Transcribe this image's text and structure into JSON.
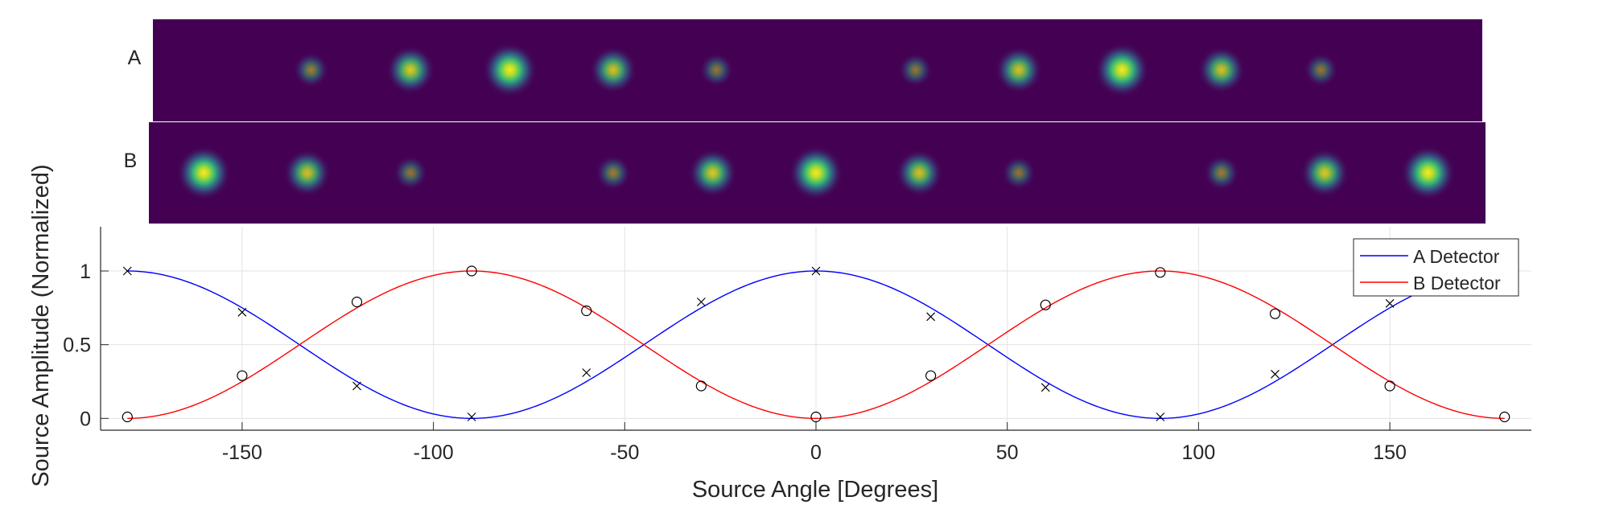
{
  "chart_data": [
    {
      "type": "heatmap",
      "row_label": "A",
      "spots": [
        {
          "angle": -132,
          "intensity": 0.35
        },
        {
          "angle": -106,
          "intensity": 0.8
        },
        {
          "angle": -80,
          "intensity": 1.0
        },
        {
          "angle": -53,
          "intensity": 0.75
        },
        {
          "angle": -26,
          "intensity": 0.3
        },
        {
          "angle": 26,
          "intensity": 0.3
        },
        {
          "angle": 53,
          "intensity": 0.75
        },
        {
          "angle": 80,
          "intensity": 1.0
        },
        {
          "angle": 106,
          "intensity": 0.75
        },
        {
          "angle": 132,
          "intensity": 0.3
        }
      ]
    },
    {
      "type": "heatmap",
      "row_label": "B",
      "spots": [
        {
          "angle": -160,
          "intensity": 1.0
        },
        {
          "angle": -133,
          "intensity": 0.75
        },
        {
          "angle": -106,
          "intensity": 0.3
        },
        {
          "angle": -53,
          "intensity": 0.35
        },
        {
          "angle": -27,
          "intensity": 0.8
        },
        {
          "angle": 0,
          "intensity": 1.0
        },
        {
          "angle": 27,
          "intensity": 0.75
        },
        {
          "angle": 53,
          "intensity": 0.3
        },
        {
          "angle": 106,
          "intensity": 0.35
        },
        {
          "angle": 133,
          "intensity": 0.8
        },
        {
          "angle": 160,
          "intensity": 1.0
        }
      ]
    },
    {
      "type": "line",
      "xlabel": "Source Angle [Degrees]",
      "ylabel": "Source Amplitude (Normalized)",
      "xlim": [
        -187,
        187
      ],
      "ylim": [
        -0.08,
        1.3
      ],
      "xticks": [
        -150,
        -100,
        -50,
        0,
        50,
        100,
        150
      ],
      "yticks": [
        0,
        0.5,
        1
      ],
      "ytick_labels": [
        "0",
        "0.5",
        "1"
      ],
      "grid": true,
      "legend_position": "top-right",
      "series": [
        {
          "name": "A Detector",
          "color": "#0000ff",
          "function": "cos2"
        },
        {
          "name": "B Detector",
          "color": "#ff0000",
          "function": "sin2"
        }
      ],
      "markers": [
        {
          "series": "A Detector",
          "marker": "x",
          "x": [
            -180,
            -150,
            -120,
            -90,
            -60,
            -30,
            0,
            30,
            60,
            90,
            120,
            150
          ],
          "y": [
            1.0,
            0.72,
            0.22,
            0.01,
            0.31,
            0.79,
            1.0,
            0.69,
            0.21,
            0.01,
            0.3,
            0.78
          ]
        },
        {
          "series": "B Detector",
          "marker": "o",
          "x": [
            -180,
            -150,
            -120,
            -90,
            -60,
            -30,
            0,
            30,
            60,
            90,
            120,
            150,
            180
          ],
          "y": [
            0.01,
            0.29,
            0.79,
            1.0,
            0.73,
            0.22,
            0.01,
            0.29,
            0.77,
            0.99,
            0.71,
            0.22,
            0.01
          ]
        }
      ]
    }
  ]
}
